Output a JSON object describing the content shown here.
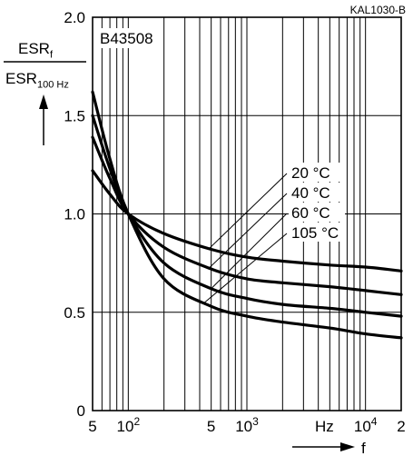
{
  "chart_data": {
    "type": "line",
    "doc_code": "KAL1030-B",
    "series_label": "B43508",
    "ylabel": {
      "numerator": "ESR",
      "numerator_sub": "f",
      "denominator": "ESR",
      "denominator_sub": "100 Hz"
    },
    "xlabel": "f",
    "x_unit": "Hz",
    "x_scale": "log",
    "xlim": [
      50,
      20000
    ],
    "ylim": [
      0,
      2.0
    ],
    "y_ticks": [
      "0",
      "0.5",
      "1.0",
      "1.5",
      "2.0"
    ],
    "y_tick_values": [
      0,
      0.5,
      1.0,
      1.5,
      2.0
    ],
    "x_ticks": [
      {
        "value": 50,
        "label": "5"
      },
      {
        "value": 100,
        "label": "10",
        "exp": "2"
      },
      {
        "value": 500,
        "label": "5"
      },
      {
        "value": 1000,
        "label": "10",
        "exp": "3"
      },
      {
        "value": 10000,
        "label": "10",
        "exp": "4"
      },
      {
        "value": 20000,
        "label": "2"
      }
    ],
    "grid": true,
    "series": [
      {
        "name": "20 °C",
        "x": [
          50,
          70,
          100,
          200,
          500,
          1000,
          2000,
          5000,
          10000,
          20000
        ],
        "y": [
          1.22,
          1.1,
          1.0,
          0.9,
          0.82,
          0.78,
          0.76,
          0.74,
          0.73,
          0.71
        ]
      },
      {
        "name": "40 °C",
        "x": [
          50,
          70,
          100,
          200,
          500,
          1000,
          2000,
          5000,
          10000,
          20000
        ],
        "y": [
          1.39,
          1.18,
          1.0,
          0.83,
          0.72,
          0.67,
          0.65,
          0.63,
          0.61,
          0.59
        ]
      },
      {
        "name": "60 °C",
        "x": [
          50,
          70,
          100,
          200,
          500,
          1000,
          2000,
          5000,
          10000,
          20000
        ],
        "y": [
          1.5,
          1.23,
          1.0,
          0.75,
          0.62,
          0.57,
          0.54,
          0.52,
          0.5,
          0.48
        ]
      },
      {
        "name": "105 °C",
        "x": [
          50,
          70,
          100,
          200,
          500,
          1000,
          2000,
          5000,
          10000,
          20000
        ],
        "y": [
          1.62,
          1.28,
          1.0,
          0.67,
          0.53,
          0.48,
          0.45,
          0.42,
          0.39,
          0.37
        ]
      }
    ]
  }
}
